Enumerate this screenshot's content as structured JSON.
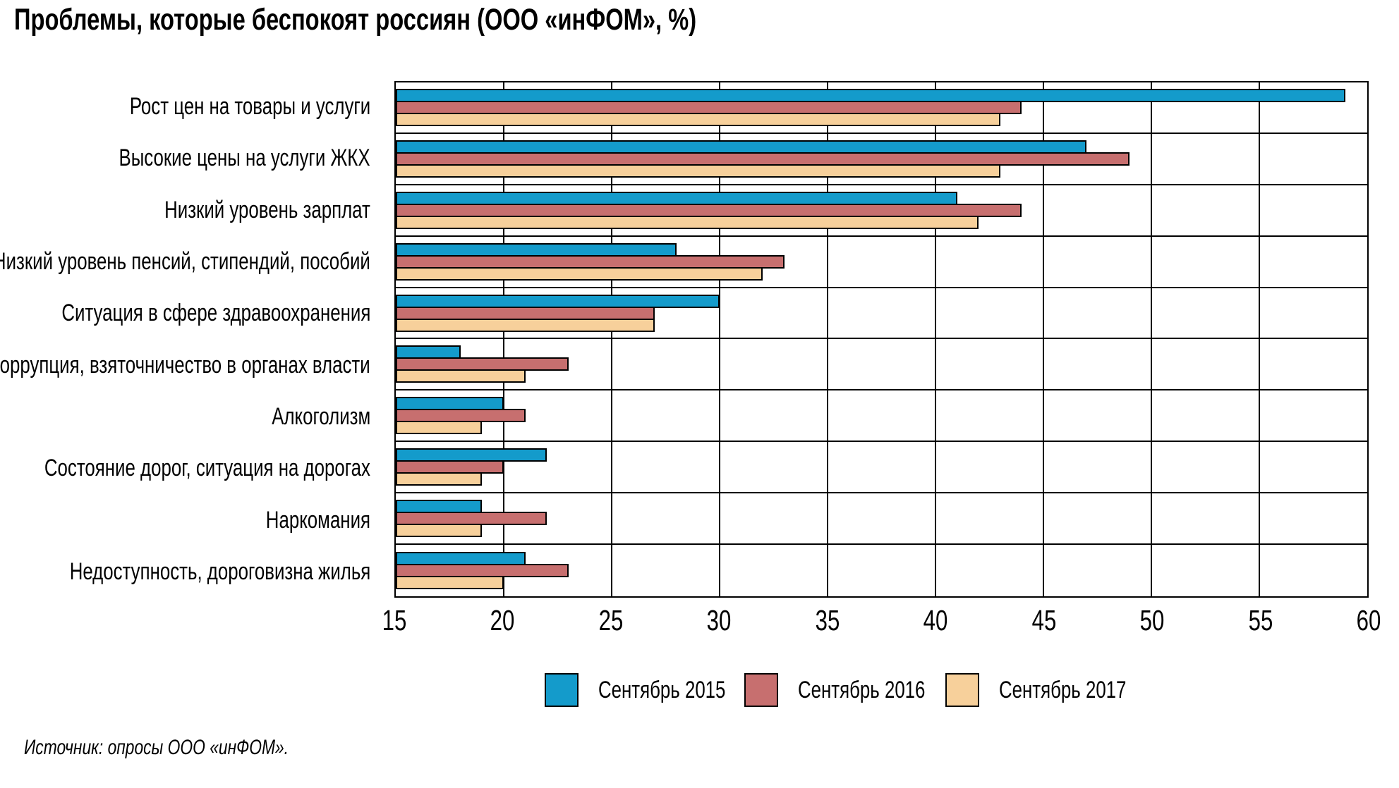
{
  "title": "Проблемы, которые беспокоят россиян (ООО «инФОМ», %)",
  "source": "Источник: опросы ООО «инФОМ».",
  "chart_data": {
    "type": "bar",
    "orientation": "horizontal",
    "title": "Проблемы, которые беспокоят россиян (ООО «инФОМ», %)",
    "categories": [
      "Рост цен на товары и услуги",
      "Высокие цены на услуги ЖКХ",
      "Низкий уровень зарплат",
      "Низкий уровень пенсий, стипендий, пособий",
      "Ситуация в сфере здравоохранения",
      "Коррупция, взяточничество в органах власти",
      "Алкоголизм",
      "Состояние дорог, ситуация на дорогах",
      "Наркомания",
      "Недоступность, дороговизна жилья"
    ],
    "series": [
      {
        "name": "Сентябрь 2015",
        "color": "#149BCB",
        "values": [
          59,
          47,
          41,
          28,
          30,
          18,
          20,
          22,
          19,
          21
        ]
      },
      {
        "name": "Сентябрь 2016",
        "color": "#C76F6F",
        "values": [
          44,
          49,
          44,
          33,
          27,
          23,
          21,
          20,
          22,
          23
        ]
      },
      {
        "name": "Сентябрь 2017",
        "color": "#F7D09B",
        "values": [
          43,
          43,
          42,
          32,
          27,
          21,
          19,
          19,
          19,
          20
        ]
      }
    ],
    "xlim": [
      15,
      60
    ],
    "xticks": [
      15,
      20,
      25,
      30,
      35,
      40,
      45,
      50,
      55,
      60
    ],
    "grid": true,
    "grid_color": "#000000",
    "bar_border_color": "#000000",
    "legend_position": "bottom",
    "source": "Источник: опросы ООО «инФОМ»."
  }
}
